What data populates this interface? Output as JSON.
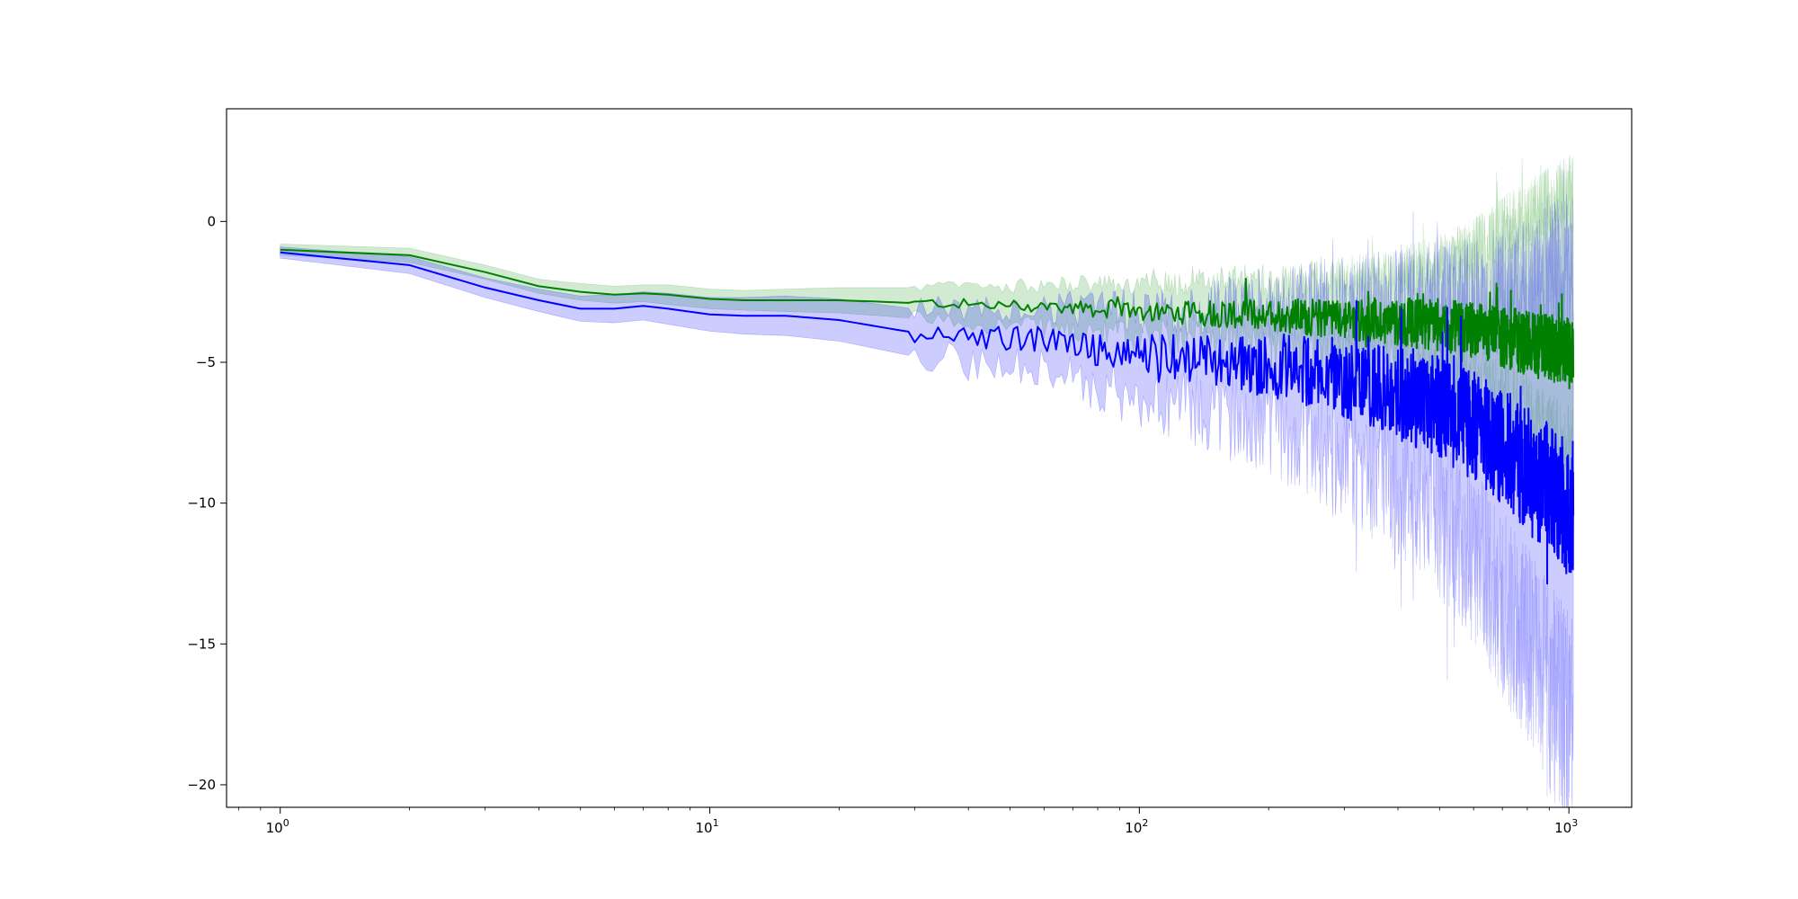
{
  "chart_data": {
    "type": "line",
    "title": "",
    "xlabel": "",
    "ylabel": "",
    "x_scale": "log",
    "xlim": [
      0.75,
      1400
    ],
    "ylim": [
      -20.8,
      4.0
    ],
    "grid": false,
    "x_ticks": [
      {
        "value": 1,
        "base": "10",
        "exp": "0"
      },
      {
        "value": 10,
        "base": "10",
        "exp": "1"
      },
      {
        "value": 100,
        "base": "10",
        "exp": "2"
      },
      {
        "value": 1000,
        "base": "10",
        "exp": "3"
      }
    ],
    "y_ticks": [
      {
        "value": 0,
        "label": "0"
      },
      {
        "value": -5,
        "label": "−5"
      },
      {
        "value": -10,
        "label": "−10"
      },
      {
        "value": -15,
        "label": "−15"
      },
      {
        "value": -20,
        "label": "−20"
      }
    ],
    "series": [
      {
        "color": "#008000",
        "band_color": "#2ca02c",
        "x": [
          1,
          2,
          3,
          4,
          5,
          6,
          7,
          8,
          10,
          12,
          15,
          20,
          25,
          30,
          35,
          40,
          50,
          60,
          70,
          80,
          100,
          120,
          150,
          200,
          250,
          300,
          400,
          500,
          600,
          700,
          800,
          900,
          1000
        ],
        "mean": [
          -1.0,
          -1.2,
          -1.8,
          -2.3,
          -2.5,
          -2.6,
          -2.55,
          -2.6,
          -2.75,
          -2.8,
          -2.8,
          -2.8,
          -2.85,
          -2.9,
          -2.9,
          -2.95,
          -3.0,
          -3.0,
          -3.05,
          -3.1,
          -3.15,
          -3.2,
          -3.25,
          -3.3,
          -3.4,
          -3.45,
          -3.55,
          -3.7,
          -3.9,
          -4.1,
          -4.3,
          -4.5,
          -4.7
        ],
        "lower": [
          -1.2,
          -1.45,
          -2.05,
          -2.55,
          -2.8,
          -2.9,
          -2.85,
          -2.95,
          -3.1,
          -3.15,
          -3.2,
          -3.25,
          -3.35,
          -3.45,
          -3.5,
          -3.6,
          -3.7,
          -3.75,
          -3.85,
          -3.95,
          -4.05,
          -4.15,
          -4.3,
          -4.45,
          -4.6,
          -4.8,
          -5.1,
          -5.5,
          -6.0,
          -6.6,
          -7.2,
          -7.9,
          -8.5
        ],
        "upper": [
          -0.8,
          -0.95,
          -1.55,
          -2.05,
          -2.2,
          -2.3,
          -2.25,
          -2.25,
          -2.4,
          -2.45,
          -2.4,
          -2.35,
          -2.35,
          -2.35,
          -2.3,
          -2.3,
          -2.3,
          -2.25,
          -2.25,
          -2.25,
          -2.25,
          -2.2,
          -2.15,
          -2.1,
          -2.1,
          -2.0,
          -1.8,
          -1.5,
          -1.0,
          -0.3,
          0.2,
          0.6,
          1.0
        ],
        "noise_from": 30,
        "noise_amp": 0.18
      },
      {
        "color": "#0000ff",
        "band_color": "#0000ff",
        "x": [
          1,
          2,
          3,
          4,
          5,
          6,
          7,
          8,
          10,
          12,
          15,
          20,
          25,
          30,
          35,
          40,
          50,
          60,
          70,
          80,
          100,
          120,
          150,
          200,
          250,
          300,
          400,
          500,
          600,
          700,
          800,
          900,
          1000
        ],
        "mean": [
          -1.1,
          -1.55,
          -2.35,
          -2.8,
          -3.1,
          -3.1,
          -3.0,
          -3.1,
          -3.3,
          -3.35,
          -3.35,
          -3.5,
          -3.75,
          -3.95,
          -3.9,
          -4.1,
          -4.15,
          -4.2,
          -4.35,
          -4.5,
          -4.65,
          -4.8,
          -4.95,
          -5.1,
          -5.3,
          -5.6,
          -6.1,
          -6.6,
          -7.3,
          -8.0,
          -8.8,
          -9.5,
          -10.2
        ],
        "lower": [
          -1.3,
          -1.85,
          -2.7,
          -3.2,
          -3.55,
          -3.6,
          -3.5,
          -3.65,
          -3.9,
          -4.0,
          -4.05,
          -4.25,
          -4.55,
          -4.8,
          -4.8,
          -5.05,
          -5.2,
          -5.35,
          -5.6,
          -5.85,
          -6.15,
          -6.45,
          -6.8,
          -7.2,
          -7.8,
          -8.4,
          -9.4,
          -10.5,
          -11.9,
          -13.5,
          -15.0,
          -16.5,
          -17.8
        ],
        "upper": [
          -0.9,
          -1.25,
          -2.0,
          -2.4,
          -2.65,
          -2.6,
          -2.5,
          -2.55,
          -2.7,
          -2.7,
          -2.65,
          -2.75,
          -2.95,
          -3.1,
          -3.0,
          -3.15,
          -3.1,
          -3.05,
          -3.1,
          -3.15,
          -3.15,
          -3.15,
          -3.1,
          -3.0,
          -2.8,
          -2.8,
          -2.8,
          -2.7,
          -2.7,
          -2.5,
          -2.4,
          -2.0,
          -1.5
        ],
        "noise_from": 30,
        "noise_amp": 0.35
      }
    ]
  }
}
